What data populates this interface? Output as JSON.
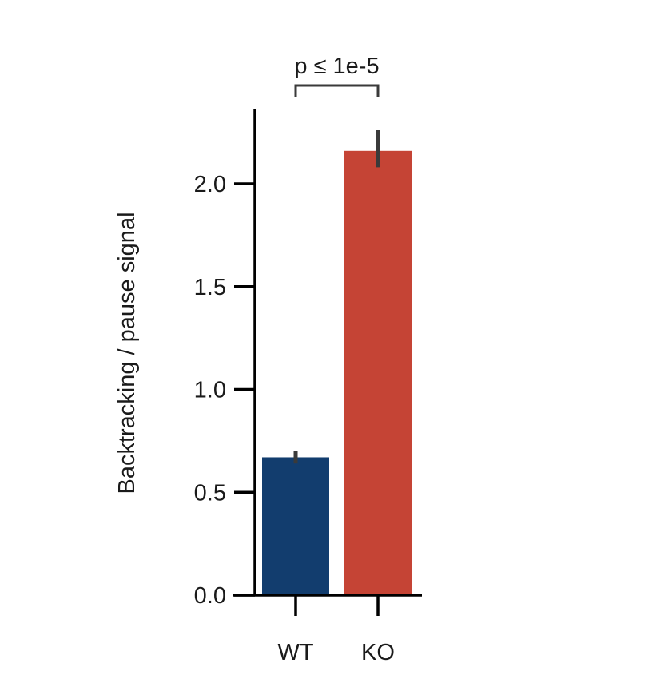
{
  "chart_data": {
    "type": "bar",
    "categories": [
      "WT",
      "KO"
    ],
    "values": [
      0.67,
      2.16
    ],
    "error_low": [
      0.64,
      2.08
    ],
    "error_high": [
      0.7,
      2.26
    ],
    "ylabel": "Backtracking / pause signal",
    "xlabel": "",
    "ylim": [
      0,
      2.35
    ],
    "yticks": [
      0.0,
      0.5,
      1.0,
      1.5,
      2.0
    ],
    "ytick_labels": [
      "0.0",
      "0.5",
      "1.0",
      "1.5",
      "2.0"
    ],
    "colors": [
      "#123d6e",
      "#c54435"
    ],
    "errorbar_color": "#3a3a3a",
    "grid": false,
    "annotation": {
      "text": "p ≤ 1e-5",
      "between": [
        "WT",
        "KO"
      ]
    }
  }
}
